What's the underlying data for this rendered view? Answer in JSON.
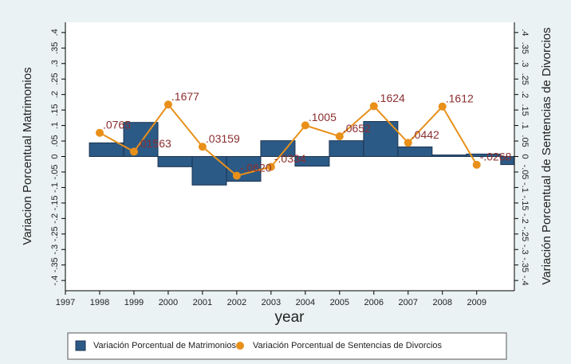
{
  "chart_data": {
    "type": "bar_line",
    "x_label": "year",
    "y_label": "Variacion Porcentual Matrimonios",
    "y2_label": "Variación Porcentual de Sentencias de Divorcios",
    "xlim": [
      1997,
      2010.1
    ],
    "xticks": [
      1997,
      1998,
      1999,
      2000,
      2001,
      2002,
      2003,
      2004,
      2005,
      2006,
      2007,
      2008,
      2009
    ],
    "ylim": [
      -0.433,
      0.433
    ],
    "yticks": [
      {
        "value": -0.4,
        "label": "-.4"
      },
      {
        "value": -0.35,
        "label": "-.35"
      },
      {
        "value": -0.3,
        "label": "-.3"
      },
      {
        "value": -0.25,
        "label": "-.25"
      },
      {
        "value": -0.2,
        "label": "-.2"
      },
      {
        "value": -0.15,
        "label": "-.15"
      },
      {
        "value": -0.1,
        "label": "-.1"
      },
      {
        "value": -0.05,
        "label": "-.05"
      },
      0,
      {
        "value": 0.05,
        "label": ".05"
      },
      {
        "value": 0.1,
        "label": ".1"
      },
      {
        "value": 0.15,
        "label": ".15"
      },
      {
        "value": 0.2,
        "label": ".2"
      },
      {
        "value": 0.25,
        "label": ".25"
      },
      {
        "value": 0.3,
        "label": ".3"
      },
      {
        "value": 0.35,
        "label": ".35"
      },
      {
        "value": 0.4,
        "label": ".4"
      }
    ],
    "y2lim": [
      -0.433,
      0.433
    ],
    "y2ticks": [
      {
        "value": -0.4,
        "label": "-.4"
      },
      {
        "value": -0.35,
        "label": "-.35"
      },
      {
        "value": -0.3,
        "label": "-.3"
      },
      {
        "value": -0.25,
        "label": "-.25"
      },
      {
        "value": -0.2,
        "label": "-.2"
      },
      {
        "value": -0.15,
        "label": "-.15"
      },
      {
        "value": -0.1,
        "label": "-.1"
      },
      {
        "value": -0.05,
        "label": "-.05"
      },
      0,
      {
        "value": 0.05,
        "label": ".05"
      },
      {
        "value": 0.1,
        "label": ".1"
      },
      {
        "value": 0.15,
        "label": ".15"
      },
      {
        "value": 0.2,
        "label": ".2"
      },
      {
        "value": 0.25,
        "label": ".25"
      },
      {
        "value": 0.3,
        "label": ".3"
      },
      {
        "value": 0.35,
        "label": ".35"
      },
      {
        "value": 0.4,
        "label": ".4"
      }
    ],
    "grid": false,
    "legend": "bottom",
    "series": [
      {
        "name": "Variación Porcentual de Matrimonios",
        "type": "bar",
        "color": "#2c5a86",
        "x": [
          1998,
          1999,
          2000,
          2001,
          2002,
          2003,
          2004,
          2005,
          2006,
          2007,
          2008,
          2009,
          2010
        ],
        "values": [
          0.044,
          0.11,
          -0.033,
          -0.092,
          -0.08,
          0.051,
          -0.031,
          0.051,
          0.113,
          0.031,
          0.005,
          0.008,
          -0.026
        ]
      },
      {
        "name": "Variación Porcentual de Sentencias de Divorcios",
        "type": "line",
        "axis": "y2",
        "color": "#e8901a",
        "x": [
          1998,
          1999,
          2000,
          2001,
          2002,
          2003,
          2004,
          2005,
          2006,
          2007,
          2008,
          2009
        ],
        "values": [
          0.0765,
          0.01563,
          0.1677,
          0.03159,
          -0.062,
          -0.0334,
          0.1005,
          0.0652,
          0.1624,
          0.0442,
          0.1612,
          -0.0268
        ],
        "value_labels": [
          ".0765",
          ".01563",
          ".1677",
          ".03159",
          "-.0620",
          "-.0334",
          ".1005",
          ".0652",
          ".1624",
          ".0442",
          ".1612",
          "-.0268"
        ]
      }
    ]
  }
}
